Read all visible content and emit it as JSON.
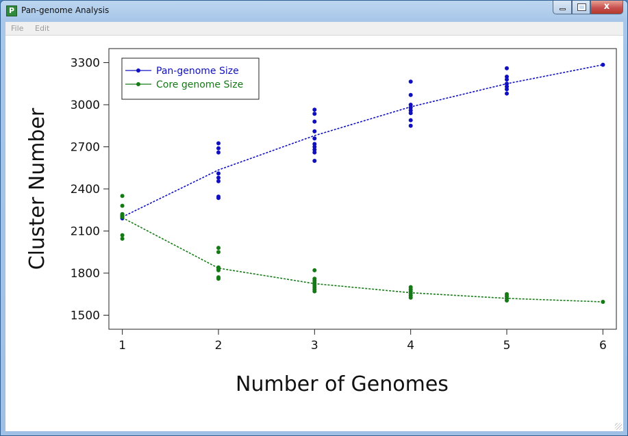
{
  "window": {
    "title": "Pan-genome Analysis",
    "icon": "P",
    "close_glyph": "x"
  },
  "menu": {
    "items": [
      "File",
      "Edit"
    ]
  },
  "chart_data": {
    "type": "scatter",
    "title": "",
    "xlabel": "Number of Genomes",
    "ylabel": "Cluster Number",
    "xlim": [
      0.86,
      6.14
    ],
    "ylim": [
      1400,
      3400
    ],
    "xticks": [
      "1",
      "2",
      "3",
      "4",
      "5",
      "6"
    ],
    "yticks": [
      "1500",
      "1800",
      "2100",
      "2400",
      "2700",
      "3000",
      "3300"
    ],
    "grid": false,
    "legend": "top-left",
    "series": [
      {
        "name": "Pan-genome Size",
        "color": "#1010c0",
        "points": [
          [
            1,
            2200
          ],
          [
            1,
            2210
          ],
          [
            1,
            2220
          ],
          [
            1,
            2190
          ],
          [
            1,
            2205
          ],
          [
            2,
            2725
          ],
          [
            2,
            2690
          ],
          [
            2,
            2660
          ],
          [
            2,
            2510
          ],
          [
            2,
            2480
          ],
          [
            2,
            2455
          ],
          [
            2,
            2345
          ],
          [
            2,
            2335
          ],
          [
            3,
            2965
          ],
          [
            3,
            2935
          ],
          [
            3,
            2880
          ],
          [
            3,
            2810
          ],
          [
            3,
            2760
          ],
          [
            3,
            2720
          ],
          [
            3,
            2700
          ],
          [
            3,
            2680
          ],
          [
            3,
            2660
          ],
          [
            3,
            2600
          ],
          [
            4,
            3165
          ],
          [
            4,
            3070
          ],
          [
            4,
            3000
          ],
          [
            4,
            2980
          ],
          [
            4,
            2960
          ],
          [
            4,
            2940
          ],
          [
            4,
            2890
          ],
          [
            4,
            2850
          ],
          [
            5,
            3260
          ],
          [
            5,
            3200
          ],
          [
            5,
            3180
          ],
          [
            5,
            3150
          ],
          [
            5,
            3130
          ],
          [
            5,
            3110
          ],
          [
            5,
            3080
          ],
          [
            6,
            3285
          ]
        ],
        "fit": [
          [
            1,
            2200
          ],
          [
            2,
            2535
          ],
          [
            3,
            2780
          ],
          [
            4,
            2985
          ],
          [
            5,
            3150
          ],
          [
            6,
            3285
          ]
        ]
      },
      {
        "name": "Core genome Size",
        "color": "#157a15",
        "points": [
          [
            1,
            2350
          ],
          [
            1,
            2280
          ],
          [
            1,
            2220
          ],
          [
            1,
            2210
          ],
          [
            1,
            2200
          ],
          [
            1,
            2070
          ],
          [
            1,
            2045
          ],
          [
            2,
            1980
          ],
          [
            2,
            1950
          ],
          [
            2,
            1840
          ],
          [
            2,
            1830
          ],
          [
            2,
            1820
          ],
          [
            2,
            1770
          ],
          [
            2,
            1760
          ],
          [
            3,
            1820
          ],
          [
            3,
            1760
          ],
          [
            3,
            1745
          ],
          [
            3,
            1730
          ],
          [
            3,
            1715
          ],
          [
            3,
            1700
          ],
          [
            3,
            1685
          ],
          [
            3,
            1670
          ],
          [
            4,
            1700
          ],
          [
            4,
            1685
          ],
          [
            4,
            1670
          ],
          [
            4,
            1655
          ],
          [
            4,
            1640
          ],
          [
            4,
            1625
          ],
          [
            5,
            1650
          ],
          [
            5,
            1635
          ],
          [
            5,
            1620
          ],
          [
            5,
            1605
          ],
          [
            6,
            1595
          ]
        ],
        "fit": [
          [
            1,
            2195
          ],
          [
            2,
            1835
          ],
          [
            3,
            1725
          ],
          [
            4,
            1660
          ],
          [
            5,
            1620
          ],
          [
            6,
            1595
          ]
        ]
      }
    ]
  }
}
